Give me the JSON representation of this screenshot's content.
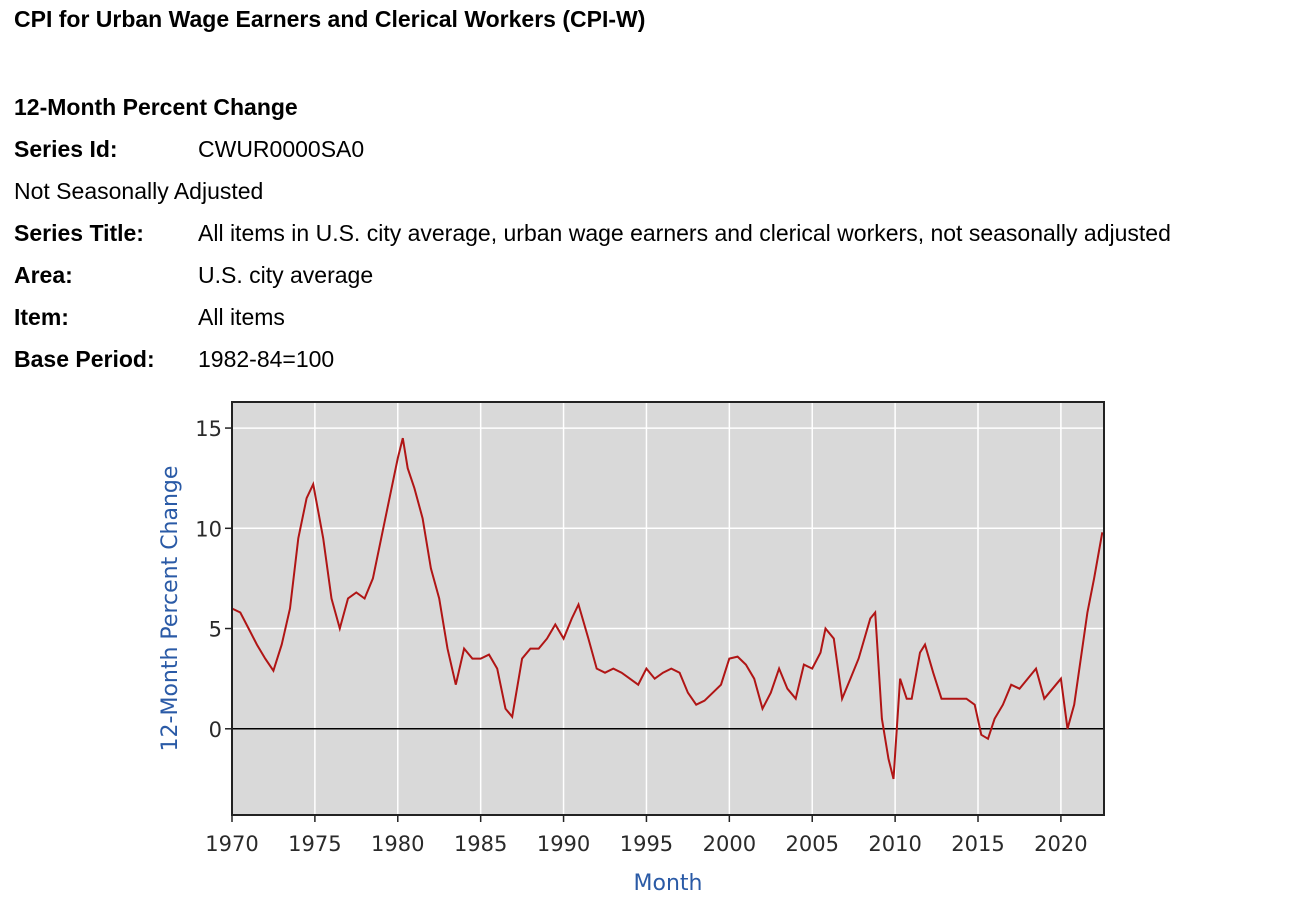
{
  "header": {
    "title": "CPI for Urban Wage Earners and Clerical Workers (CPI-W)"
  },
  "series_info": {
    "heading": "12-Month Percent Change",
    "series_id_label": "Series Id:",
    "series_id": "CWUR0000SA0",
    "adjustment": "Not Seasonally Adjusted",
    "series_title_label": "Series Title:",
    "series_title": "All items in U.S. city average, urban wage earners and clerical workers, not seasonally adjusted",
    "area_label": "Area:",
    "area": "U.S. city average",
    "item_label": "Item:",
    "item": "All items",
    "base_period_label": "Base Period:",
    "base_period": "1982-84=100"
  },
  "chart_data": {
    "type": "line",
    "xlabel": "Month",
    "ylabel": "12-Month Percent Change",
    "xlim": [
      1970,
      2022.6
    ],
    "ylim": [
      -4.3,
      16.3
    ],
    "x_ticks": [
      1970,
      1975,
      1980,
      1985,
      1990,
      1995,
      2000,
      2005,
      2010,
      2015,
      2020
    ],
    "y_ticks": [
      0,
      5,
      10,
      15
    ],
    "grid": true,
    "reference_line": 0,
    "colors": {
      "line": "#b01515",
      "zero_line": "#000000",
      "plot_bg": "#d9d9d9",
      "grid": "#ffffff"
    },
    "series": [
      {
        "x": [
          1970.0,
          1970.5,
          1971.0,
          1971.5,
          1972.0,
          1972.5,
          1973.0,
          1973.5,
          1974.0,
          1974.5,
          1974.9,
          1975.5,
          1976.0,
          1976.5,
          1977.0,
          1977.5,
          1978.0,
          1978.5,
          1979.0,
          1979.5,
          1980.0,
          1980.3,
          1980.6,
          1981.0,
          1981.5,
          1982.0,
          1982.5,
          1983.0,
          1983.5,
          1984.0,
          1984.5,
          1985.0,
          1985.5,
          1986.0,
          1986.5,
          1986.9,
          1987.5,
          1988.0,
          1988.5,
          1989.0,
          1989.5,
          1990.0,
          1990.5,
          1990.9,
          1991.5,
          1992.0,
          1992.5,
          1993.0,
          1993.5,
          1994.0,
          1994.5,
          1995.0,
          1995.5,
          1996.0,
          1996.5,
          1997.0,
          1997.5,
          1998.0,
          1998.5,
          1999.0,
          1999.5,
          2000.0,
          2000.5,
          2001.0,
          2001.5,
          2002.0,
          2002.5,
          2003.0,
          2003.5,
          2004.0,
          2004.5,
          2005.0,
          2005.5,
          2005.8,
          2006.3,
          2006.8,
          2007.3,
          2007.8,
          2008.5,
          2008.8,
          2009.2,
          2009.6,
          2009.9,
          2010.3,
          2010.7,
          2011.0,
          2011.5,
          2011.8,
          2012.3,
          2012.8,
          2013.3,
          2013.8,
          2014.3,
          2014.8,
          2015.2,
          2015.6,
          2016.0,
          2016.5,
          2017.0,
          2017.5,
          2018.0,
          2018.5,
          2019.0,
          2019.5,
          2020.0,
          2020.4,
          2020.8,
          2021.2,
          2021.6,
          2022.0,
          2022.5
        ],
        "y": [
          6.0,
          5.8,
          5.0,
          4.2,
          3.5,
          2.9,
          4.2,
          6.0,
          9.5,
          11.5,
          12.2,
          9.5,
          6.5,
          5.0,
          6.5,
          6.8,
          6.5,
          7.5,
          9.5,
          11.5,
          13.5,
          14.5,
          13.0,
          12.0,
          10.5,
          8.0,
          6.5,
          4.0,
          2.2,
          4.0,
          3.5,
          3.5,
          3.7,
          3.0,
          1.0,
          0.6,
          3.5,
          4.0,
          4.0,
          4.5,
          5.2,
          4.5,
          5.5,
          6.2,
          4.5,
          3.0,
          2.8,
          3.0,
          2.8,
          2.5,
          2.2,
          3.0,
          2.5,
          2.8,
          3.0,
          2.8,
          1.8,
          1.2,
          1.4,
          1.8,
          2.2,
          3.5,
          3.6,
          3.2,
          2.5,
          1.0,
          1.8,
          3.0,
          2.0,
          1.5,
          3.2,
          3.0,
          3.8,
          5.0,
          4.5,
          1.5,
          2.5,
          3.5,
          5.5,
          5.8,
          0.5,
          -1.5,
          -2.5,
          2.5,
          1.5,
          1.5,
          3.8,
          4.2,
          2.8,
          1.5,
          1.5,
          1.5,
          1.5,
          1.2,
          -0.3,
          -0.5,
          0.5,
          1.2,
          2.2,
          2.0,
          2.5,
          3.0,
          1.5,
          2.0,
          2.5,
          0.0,
          1.2,
          3.5,
          5.8,
          7.5,
          9.8
        ]
      }
    ]
  }
}
